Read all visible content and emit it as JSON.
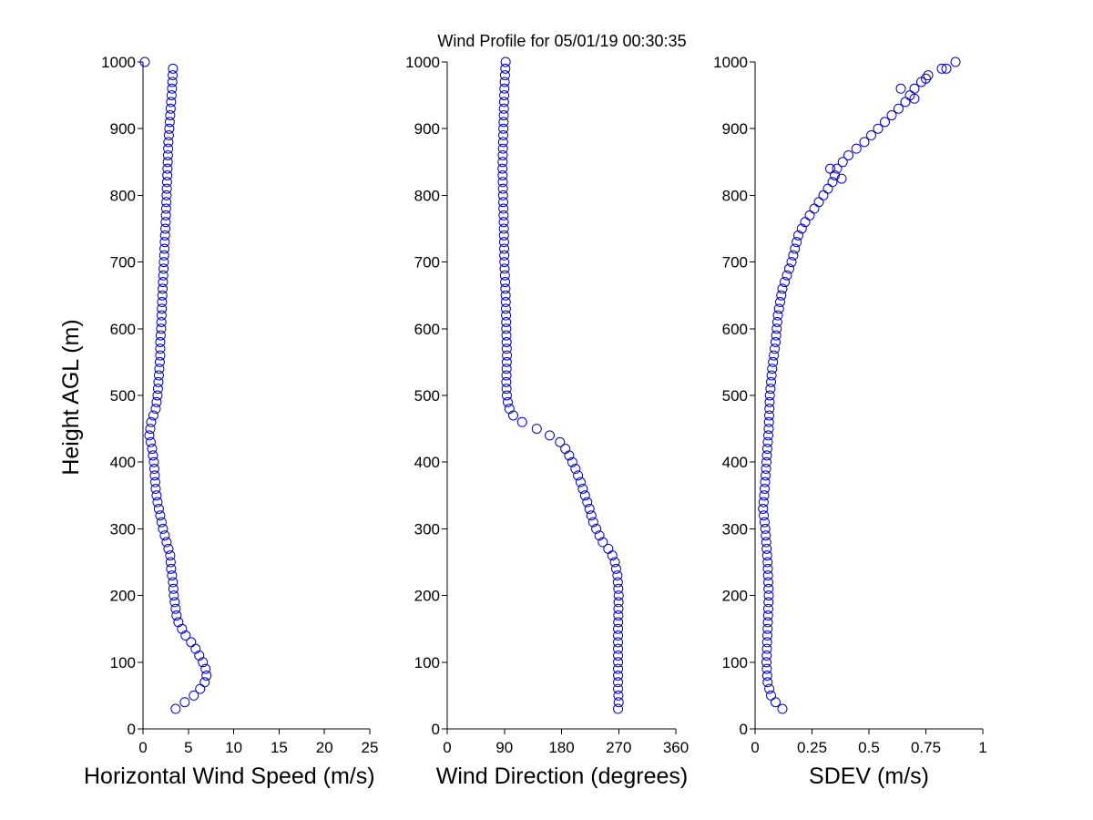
{
  "chart_data": {
    "title": "Wind Profile for  05/01/19 00:30:35",
    "ylabel": "Height AGL (m)",
    "marker_color": "#0000cc",
    "panels": [
      {
        "type": "scatter",
        "xlabel": "Horizontal Wind Speed (m/s)",
        "xlim": [
          0,
          25
        ],
        "xticks": [
          0,
          5,
          10,
          15,
          20,
          25
        ],
        "ylim": [
          0,
          1000
        ],
        "yticks": [
          0,
          100,
          200,
          300,
          400,
          500,
          600,
          700,
          800,
          900,
          1000
        ],
        "grid": false,
        "profile": [
          [
            30,
            3.6
          ],
          [
            40,
            4.6
          ],
          [
            50,
            5.6
          ],
          [
            60,
            6.3
          ],
          [
            70,
            6.8
          ],
          [
            80,
            7.0
          ],
          [
            90,
            6.9
          ],
          [
            100,
            6.6
          ],
          [
            110,
            6.2
          ],
          [
            120,
            5.8
          ],
          [
            130,
            5.3
          ],
          [
            140,
            4.7
          ],
          [
            150,
            4.3
          ],
          [
            160,
            3.9
          ],
          [
            170,
            3.7
          ],
          [
            180,
            3.6
          ],
          [
            200,
            3.4
          ],
          [
            220,
            3.3
          ],
          [
            240,
            3.1
          ],
          [
            260,
            3.0
          ],
          [
            280,
            2.6
          ],
          [
            300,
            2.2
          ],
          [
            320,
            1.9
          ],
          [
            340,
            1.6
          ],
          [
            360,
            1.4
          ],
          [
            380,
            1.3
          ],
          [
            400,
            1.2
          ],
          [
            420,
            1.0
          ],
          [
            440,
            0.7
          ],
          [
            460,
            0.9
          ],
          [
            480,
            1.4
          ],
          [
            500,
            1.6
          ],
          [
            520,
            1.7
          ],
          [
            540,
            1.8
          ],
          [
            560,
            1.9
          ],
          [
            580,
            1.9
          ],
          [
            600,
            2.0
          ],
          [
            640,
            2.1
          ],
          [
            700,
            2.3
          ],
          [
            760,
            2.5
          ],
          [
            800,
            2.6
          ],
          [
            840,
            2.7
          ],
          [
            880,
            2.8
          ],
          [
            920,
            3.0
          ],
          [
            960,
            3.2
          ],
          [
            990,
            3.3
          ]
        ],
        "extra_points": [
          {
            "x": 0.2,
            "y": 1000
          }
        ]
      },
      {
        "type": "scatter",
        "xlabel": "Wind Direction (degrees)",
        "xlim": [
          0,
          360
        ],
        "xticks": [
          0,
          90,
          180,
          270,
          360
        ],
        "ylim": [
          0,
          1000
        ],
        "yticks": [
          0,
          100,
          200,
          300,
          400,
          500,
          600,
          700,
          800,
          900,
          1000
        ],
        "grid": false,
        "profile": [
          [
            30,
            269
          ],
          [
            40,
            270
          ],
          [
            60,
            269
          ],
          [
            100,
            269
          ],
          [
            150,
            269
          ],
          [
            200,
            270
          ],
          [
            230,
            268
          ],
          [
            250,
            264
          ],
          [
            265,
            258
          ],
          [
            280,
            245
          ],
          [
            295,
            237
          ],
          [
            310,
            230
          ],
          [
            330,
            224
          ],
          [
            350,
            217
          ],
          [
            370,
            210
          ],
          [
            390,
            202
          ],
          [
            410,
            192
          ],
          [
            425,
            183
          ],
          [
            435,
            172
          ],
          [
            443,
            155
          ],
          [
            452,
            137
          ],
          [
            460,
            118
          ],
          [
            470,
            104
          ],
          [
            480,
            98
          ],
          [
            495,
            94
          ],
          [
            520,
            93
          ],
          [
            560,
            94
          ],
          [
            600,
            93
          ],
          [
            650,
            92
          ],
          [
            700,
            90
          ],
          [
            760,
            89
          ],
          [
            800,
            88
          ],
          [
            840,
            87
          ],
          [
            880,
            88
          ],
          [
            920,
            89
          ],
          [
            960,
            90
          ],
          [
            1000,
            92
          ]
        ],
        "extra_points": []
      },
      {
        "type": "scatter",
        "xlabel": "SDEV  (m/s)",
        "xlim": [
          0,
          1
        ],
        "xticks": [
          0,
          0.25,
          0.5,
          0.75,
          1
        ],
        "xtick_labels": [
          "0",
          "0.25",
          "0.5",
          "0.75",
          "1"
        ],
        "ylim": [
          0,
          1000
        ],
        "yticks": [
          0,
          100,
          200,
          300,
          400,
          500,
          600,
          700,
          800,
          900,
          1000
        ],
        "grid": false,
        "profile": [
          [
            30,
            0.12
          ],
          [
            40,
            0.09
          ],
          [
            50,
            0.07
          ],
          [
            70,
            0.055
          ],
          [
            100,
            0.05
          ],
          [
            150,
            0.055
          ],
          [
            200,
            0.06
          ],
          [
            250,
            0.055
          ],
          [
            300,
            0.045
          ],
          [
            330,
            0.035
          ],
          [
            350,
            0.04
          ],
          [
            400,
            0.05
          ],
          [
            450,
            0.06
          ],
          [
            500,
            0.065
          ],
          [
            540,
            0.075
          ],
          [
            580,
            0.09
          ],
          [
            620,
            0.1
          ],
          [
            660,
            0.12
          ],
          [
            700,
            0.16
          ],
          [
            740,
            0.19
          ],
          [
            760,
            0.22
          ],
          [
            780,
            0.26
          ],
          [
            800,
            0.3
          ],
          [
            820,
            0.34
          ],
          [
            840,
            0.36
          ],
          [
            860,
            0.41
          ],
          [
            880,
            0.48
          ],
          [
            900,
            0.54
          ],
          [
            920,
            0.6
          ],
          [
            940,
            0.66
          ],
          [
            960,
            0.7
          ],
          [
            980,
            0.76
          ],
          [
            1000,
            0.88
          ]
        ],
        "extra_points": [
          {
            "x": 0.38,
            "y": 825
          },
          {
            "x": 0.33,
            "y": 840
          },
          {
            "x": 0.64,
            "y": 960
          },
          {
            "x": 0.75,
            "y": 975
          },
          {
            "x": 0.84,
            "y": 990
          },
          {
            "x": 0.7,
            "y": 945
          }
        ]
      }
    ]
  }
}
